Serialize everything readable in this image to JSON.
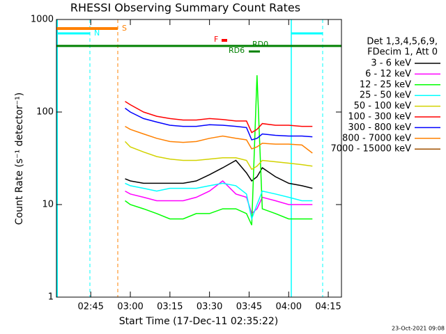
{
  "chart_data": {
    "type": "line",
    "title": "RHESSI Observing Summary Count Rates",
    "xlabel": "Start Time (17-Dec-11 02:35:22)",
    "ylabel": "Count Rate (s⁻¹ detector⁻¹)",
    "footer": "23-Oct-2021 09:08",
    "legend_title": [
      "Det 1,3,4,5,6,9,",
      "FDecim 1, Att 0"
    ],
    "annotations": [
      "S",
      "N",
      "F",
      "RD0",
      "RD6"
    ],
    "log_y": true,
    "xlim": [
      "02:32",
      "04:20"
    ],
    "xticks": [
      "02:45",
      "03:00",
      "03:15",
      "03:30",
      "03:45",
      "04:00",
      "04:15"
    ],
    "ylim": [
      1,
      1000
    ],
    "yticks": [
      1,
      10,
      100,
      1000
    ],
    "x": [
      "02:58",
      "03:00",
      "03:05",
      "03:10",
      "03:15",
      "03:20",
      "03:25",
      "03:30",
      "03:35",
      "03:40",
      "03:44",
      "03:46",
      "03:48",
      "03:50",
      "03:55",
      "04:00",
      "04:05",
      "04:09"
    ],
    "series": [
      {
        "name": "3 - 6 keV",
        "color": "#000000",
        "values": [
          19,
          18,
          17,
          17,
          17,
          17,
          18,
          21,
          25,
          30,
          22,
          18,
          20,
          25,
          20,
          17,
          16,
          15
        ]
      },
      {
        "name": "6 - 12 keV",
        "color": "#ff00ff",
        "values": [
          14,
          13,
          12,
          11,
          11,
          11,
          12,
          14,
          18,
          13,
          12,
          8,
          9,
          12,
          11,
          10,
          10,
          10
        ]
      },
      {
        "name": "12 - 25 keV",
        "color": "#00ff00",
        "values": [
          11,
          10,
          9,
          8,
          7,
          7,
          8,
          8,
          9,
          9,
          8,
          6,
          250,
          9,
          8,
          7,
          7,
          7
        ]
      },
      {
        "name": "25 - 50 keV",
        "color": "#00ffff",
        "values": [
          17,
          16,
          15,
          14,
          15,
          15,
          15,
          16,
          17,
          16,
          13,
          7,
          10,
          14,
          13,
          12,
          11,
          11
        ]
      },
      {
        "name": "50 - 100 keV",
        "color": "#d2d200",
        "values": [
          48,
          42,
          37,
          33,
          31,
          30,
          30,
          31,
          32,
          32,
          30,
          24,
          26,
          30,
          29,
          28,
          27,
          26
        ]
      },
      {
        "name": "100 - 300 keV",
        "color": "#ff0000",
        "values": [
          130,
          120,
          100,
          90,
          85,
          82,
          82,
          85,
          83,
          80,
          80,
          60,
          65,
          75,
          72,
          72,
          70,
          70
        ]
      },
      {
        "name": "300 - 800 keV",
        "color": "#0000ff",
        "values": [
          110,
          100,
          85,
          78,
          72,
          70,
          70,
          73,
          72,
          70,
          68,
          50,
          52,
          58,
          56,
          55,
          55,
          54
        ]
      },
      {
        "name": "800 - 7000 keV",
        "color": "#ff8000",
        "values": [
          70,
          65,
          58,
          52,
          48,
          47,
          48,
          52,
          55,
          52,
          50,
          40,
          42,
          46,
          45,
          45,
          44,
          36
        ]
      },
      {
        "name": "7000 - 15000 keV",
        "color": "#a05000",
        "values": [
          null,
          null,
          null,
          null,
          null,
          null,
          null,
          null,
          null,
          null,
          null,
          null,
          null,
          null,
          null,
          null,
          null,
          null
        ]
      }
    ]
  }
}
